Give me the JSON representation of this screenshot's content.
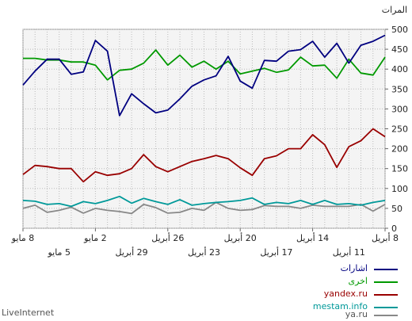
{
  "chart_data": {
    "type": "line",
    "title": "",
    "ylabel": "المرات",
    "ylim": [
      0,
      500
    ],
    "yticks": [
      0,
      50,
      100,
      150,
      200,
      250,
      300,
      350,
      400,
      450,
      500
    ],
    "x_ticks_row1": [
      "8 مايو",
      "2 مايو",
      "26 أبريل",
      "20 أبريل",
      "14 أبريل",
      "8 أبريل"
    ],
    "x_ticks_row2": [
      "5 مايو",
      "29 أبريل",
      "23 أبريل",
      "17 أبريل",
      "11 أبريل"
    ],
    "series": [
      {
        "name": "اشارات",
        "color": "#000080",
        "values": [
          360,
          395,
          425,
          425,
          387,
          393,
          472,
          445,
          283,
          338,
          313,
          290,
          297,
          325,
          357,
          373,
          383,
          432,
          370,
          352,
          422,
          420,
          445,
          449,
          470,
          430,
          465,
          415,
          460,
          470,
          485
        ]
      },
      {
        "name": "اخرى",
        "color": "#009900",
        "values": [
          427,
          427,
          423,
          423,
          418,
          418,
          410,
          373,
          397,
          400,
          415,
          448,
          410,
          435,
          405,
          420,
          400,
          420,
          388,
          395,
          402,
          392,
          398,
          430,
          408,
          410,
          377,
          425,
          390,
          385,
          430
        ]
      },
      {
        "name": "yandex.ru",
        "color": "#990000",
        "values": [
          135,
          158,
          155,
          150,
          150,
          117,
          142,
          133,
          137,
          150,
          185,
          155,
          142,
          155,
          168,
          175,
          183,
          175,
          152,
          133,
          175,
          182,
          200,
          200,
          235,
          210,
          153,
          205,
          220,
          250,
          230
        ]
      },
      {
        "name": "mestam.info",
        "color": "#009999",
        "values": [
          70,
          68,
          60,
          62,
          55,
          67,
          62,
          70,
          80,
          63,
          75,
          67,
          60,
          72,
          58,
          62,
          65,
          67,
          70,
          76,
          60,
          65,
          62,
          70,
          60,
          70,
          60,
          62,
          58,
          65,
          70
        ]
      },
      {
        "name": "ya.ru",
        "color": "#888888",
        "values": [
          50,
          58,
          40,
          45,
          53,
          38,
          50,
          45,
          42,
          37,
          60,
          52,
          38,
          40,
          50,
          45,
          65,
          50,
          45,
          47,
          57,
          55,
          55,
          50,
          58,
          55,
          55,
          55,
          60,
          43,
          60
        ]
      }
    ],
    "grid": true,
    "legend": "bottom-right"
  },
  "legend": {
    "items": [
      {
        "label": "اشارات",
        "color": "#000080"
      },
      {
        "label": "اخرى",
        "color": "#009900"
      },
      {
        "label": "yandex.ru",
        "color": "#990000"
      },
      {
        "label": "mestam.info",
        "color": "#009999"
      },
      {
        "label": "ya.ru",
        "color": "#888888"
      }
    ]
  },
  "watermark": "LiveInternet"
}
